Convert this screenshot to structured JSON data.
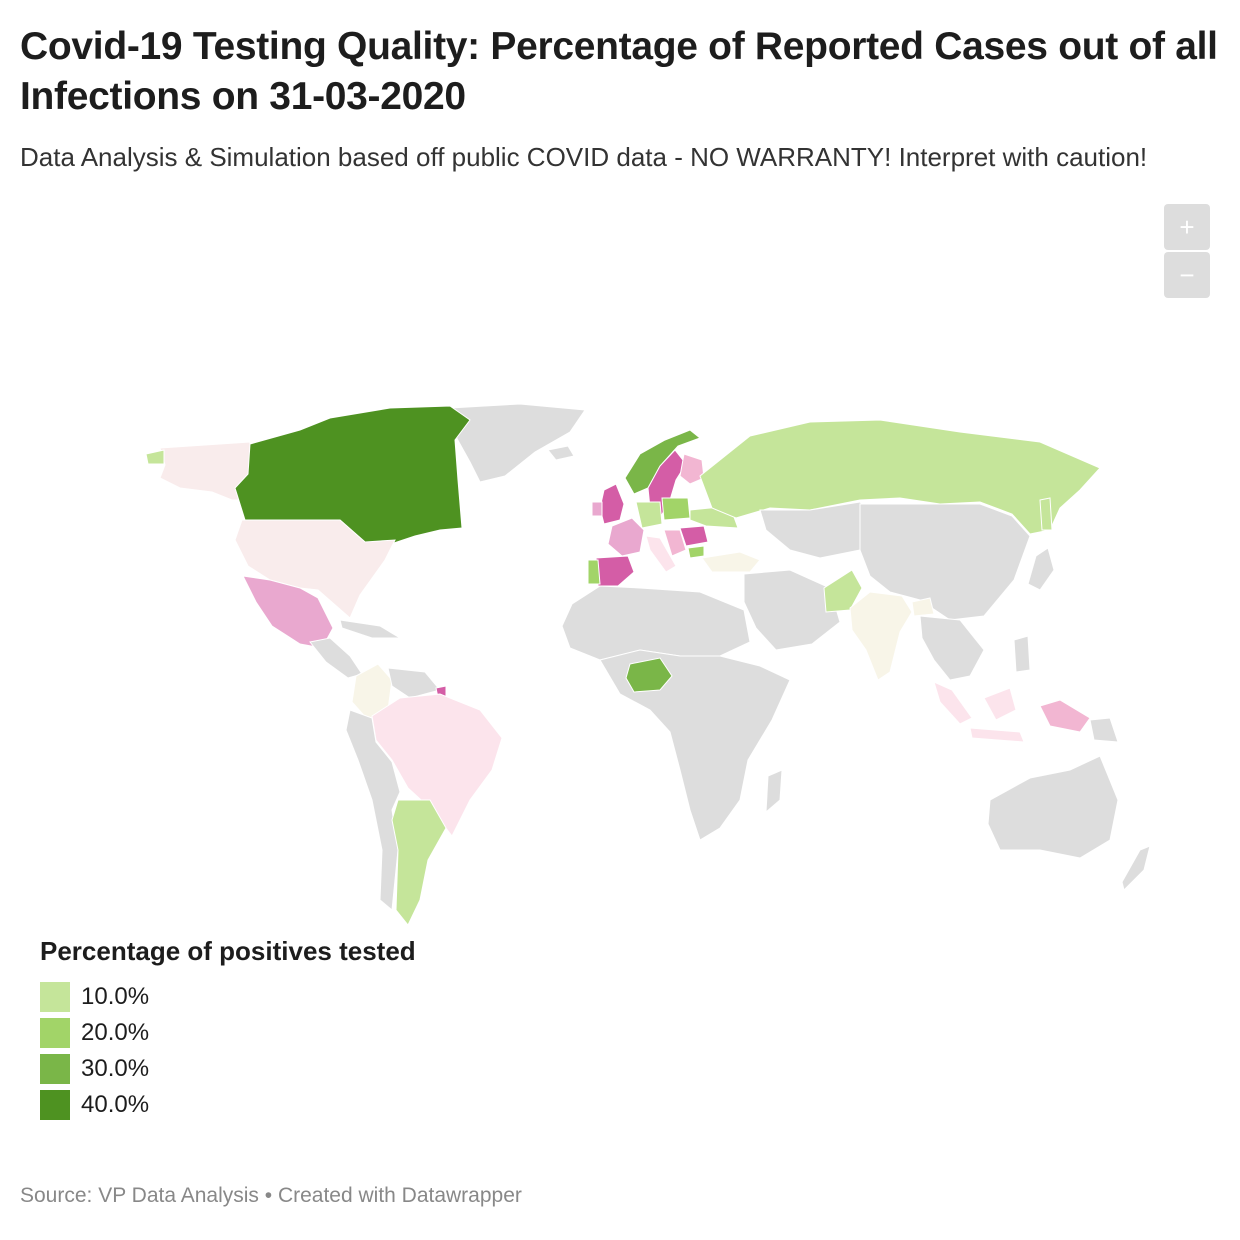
{
  "header": {
    "title": "Covid-19 Testing Quality: Percentage of Reported Cases out of all Infections on 31-03-2020",
    "subtitle": "Data Analysis & Simulation based off public COVID data - NO WARRANTY! Interpret with caution!"
  },
  "zoom": {
    "in_label": "+",
    "out_label": "−"
  },
  "legend": {
    "title": "Percentage of positives tested",
    "items": [
      {
        "label": "10.0%",
        "color": "#c5e59a"
      },
      {
        "label": "20.0%",
        "color": "#a2d468"
      },
      {
        "label": "30.0%",
        "color": "#7ab648"
      },
      {
        "label": "40.0%",
        "color": "#4e9221"
      }
    ]
  },
  "footer": {
    "source": "Source: VP Data Analysis",
    "separator": " • ",
    "credit": "Created with Datawrapper"
  },
  "colors": {
    "no_data": "#dddddd",
    "very_low": "#f9ecec",
    "low": "#fce4ec",
    "mid_low": "#f2b6d2",
    "mid": "#e9a8cf",
    "high": "#d45da6",
    "highest": "#b7127a",
    "neutral": "#f8f5e8",
    "green_1": "#c5e59a",
    "green_2": "#a2d468",
    "green_3": "#7ab648",
    "green_4": "#4e9221"
  }
}
